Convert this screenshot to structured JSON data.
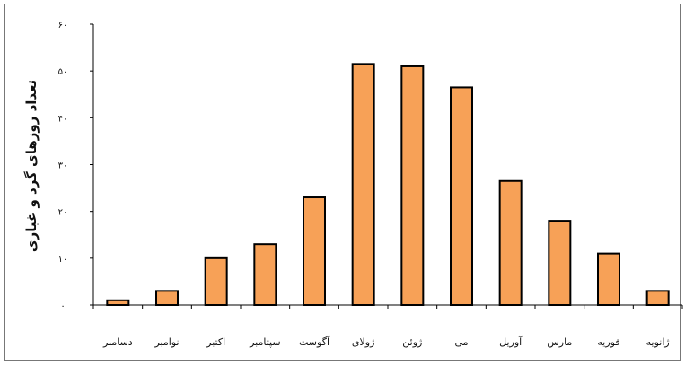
{
  "chart_data": {
    "type": "bar",
    "ylabel": "تعداد روزهای گرد و غباری",
    "xlabel": "",
    "categories": [
      "ژانویه",
      "فوریه",
      "مارس",
      "آوریل",
      "می",
      "ژوئن",
      "ژولای",
      "آگوست",
      "سپتامبر",
      "اکتبر",
      "نوامبر",
      "دسامبر"
    ],
    "values": [
      3,
      11,
      18,
      26.5,
      46.5,
      51,
      51.5,
      23,
      13,
      10,
      3,
      1
    ],
    "y_ticks": [
      0,
      10,
      20,
      30,
      40,
      50,
      60
    ],
    "y_tick_labels": [
      "۰",
      "۱۰",
      "۲۰",
      "۳۰",
      "۴۰",
      "۵۰",
      "۶۰"
    ],
    "ylim": [
      0,
      60
    ],
    "category_order": "right-to-left",
    "grid": false,
    "legend": "none",
    "colors": {
      "bar_fill": "#F7A157",
      "bar_stroke": "#000000",
      "axis": "#000000",
      "frame": "#777777"
    }
  }
}
